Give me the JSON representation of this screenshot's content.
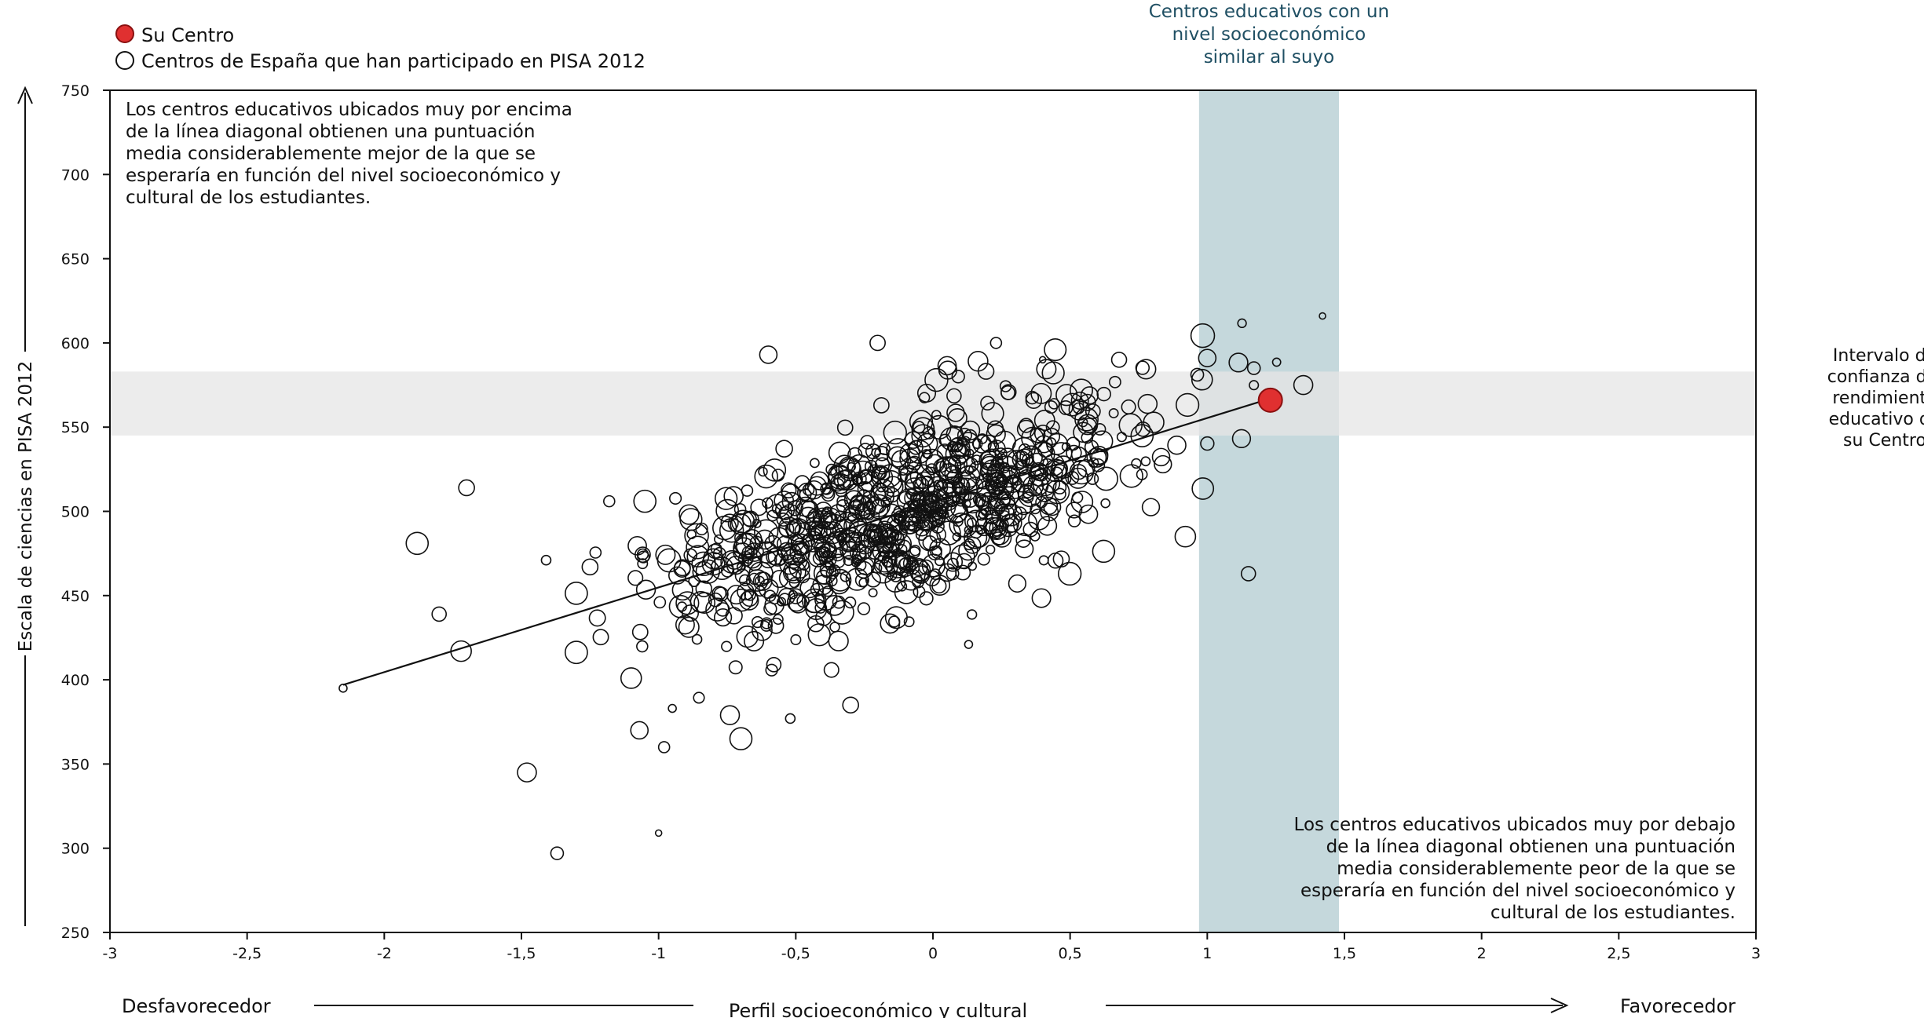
{
  "chart_data": {
    "type": "scatter",
    "legend": {
      "own_center": "Su Centro",
      "spain_centers": "Centros de España que han participado en PISA 2012",
      "placement": "top-left"
    },
    "xlim": [
      -3,
      3
    ],
    "ylim": [
      250,
      750
    ],
    "x_ticks": [
      -3,
      -2.5,
      -2,
      -1.5,
      -1,
      -0.5,
      0,
      0.5,
      1,
      1.5,
      2,
      2.5,
      3
    ],
    "x_tick_labels": [
      "-3",
      "-2,5",
      "-2",
      "-1,5",
      "-1",
      "-0,5",
      "0",
      "0,5",
      "1",
      "1,5",
      "2",
      "2,5",
      "3"
    ],
    "y_ticks": [
      250,
      300,
      350,
      400,
      450,
      500,
      550,
      600,
      650,
      700,
      750
    ],
    "ylabel": "Escala de ciencias en PISA 2012",
    "xlabel": "Perfil socioeconómico y cultural",
    "x_left_label": "Desfavorecedor",
    "x_right_label": "Favorecedor",
    "similar_band": {
      "x_from": 0.97,
      "x_to": 1.48,
      "color": "#c5d8dc",
      "label": [
        "Centros educativos con un",
        "nivel socioeconómico",
        "similar al suyo"
      ]
    },
    "confidence_band": {
      "y_from": 545,
      "y_to": 583,
      "color": "#e6e6e6",
      "label": [
        "Intervalo de",
        "confianza del",
        "rendimiento",
        "educativo de",
        "su Centro"
      ]
    },
    "regression_line": {
      "x": [
        -2.15,
        1.25
      ],
      "y": [
        397,
        568
      ]
    },
    "own_center": {
      "x": 1.23,
      "y": 566,
      "color": "#e03030"
    },
    "annotation_top": [
      "Los centros educativos ubicados muy por encima",
      "de la línea diagonal obtienen una puntuación",
      "media considerablemente mejor de la que se",
      "esperaría en función del nivel socioeconómico y",
      "cultural de los estudiantes."
    ],
    "annotation_bottom": [
      "Los centros educativos ubicados muy por debajo",
      "de la línea diagonal obtienen una puntuación",
      "media considerablemente peor de la que se",
      "esperaría en función del nivel socioeconómico y",
      "cultural de los estudiantes."
    ],
    "outliers": [
      {
        "x": 1.42,
        "y": 616
      },
      {
        "x": -0.6,
        "y": 593
      },
      {
        "x": 0.23,
        "y": 600
      },
      {
        "x": -1.88,
        "y": 481
      },
      {
        "x": -1.7,
        "y": 514
      },
      {
        "x": -1.41,
        "y": 471
      },
      {
        "x": -1.72,
        "y": 417
      },
      {
        "x": -1.8,
        "y": 439
      },
      {
        "x": -2.15,
        "y": 395
      },
      {
        "x": -1.48,
        "y": 345
      },
      {
        "x": -1.37,
        "y": 297
      },
      {
        "x": -1.0,
        "y": 309
      },
      {
        "x": -1.07,
        "y": 370
      },
      {
        "x": -0.98,
        "y": 360
      },
      {
        "x": -0.7,
        "y": 365
      },
      {
        "x": -0.3,
        "y": 385
      },
      {
        "x": -0.52,
        "y": 377
      },
      {
        "x": 0.92,
        "y": 485
      },
      {
        "x": 1.15,
        "y": 463
      },
      {
        "x": 0.13,
        "y": 421
      },
      {
        "x": 1.35,
        "y": 575
      },
      {
        "x": 1.17,
        "y": 585
      },
      {
        "x": 0.4,
        "y": 590
      },
      {
        "x": 1.0,
        "y": 591
      },
      {
        "x": -1.18,
        "y": 506
      },
      {
        "x": -1.05,
        "y": 506
      },
      {
        "x": -1.25,
        "y": 467
      },
      {
        "x": -0.86,
        "y": 424
      },
      {
        "x": -1.1,
        "y": 401
      },
      {
        "x": -0.58,
        "y": 409
      },
      {
        "x": -0.95,
        "y": 383
      },
      {
        "x": -0.74,
        "y": 379
      }
    ],
    "cluster": {
      "count": 900,
      "x_mean": -0.1,
      "x_sd": 0.42,
      "y_at_mean": 500,
      "slope": 50,
      "y_sd": 27,
      "x_min": -1.3,
      "x_max": 1.3
    }
  }
}
